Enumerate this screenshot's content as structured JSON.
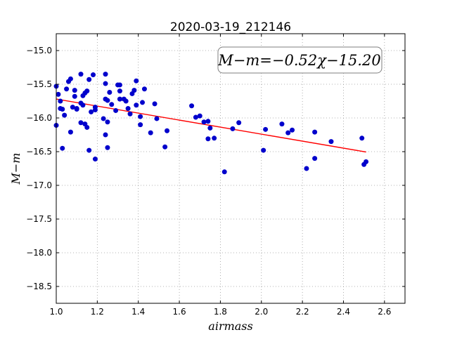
{
  "chart_data": {
    "type": "scatter",
    "title": "2020-03-19_212146",
    "xlabel": "airmass",
    "ylabel": "M−m",
    "xlim": [
      1.0,
      2.7
    ],
    "ylim": [
      -18.75,
      -14.75
    ],
    "y_inverted": true,
    "x_ticks": [
      1.0,
      1.2,
      1.4,
      1.6,
      1.8,
      2.0,
      2.2,
      2.4,
      2.6
    ],
    "x_tick_labels": [
      "1.0",
      "1.2",
      "1.4",
      "1.6",
      "1.8",
      "2.0",
      "2.2",
      "2.4",
      "2.6"
    ],
    "y_ticks": [
      -15.0,
      -15.5,
      -16.0,
      -16.5,
      -17.0,
      -17.5,
      -18.0,
      -18.5
    ],
    "y_tick_labels": [
      "−15.0",
      "−15.5",
      "−16.0",
      "−16.5",
      "−17.0",
      "−17.5",
      "−18.0",
      "−18.5"
    ],
    "grid": true,
    "annotation": "M−m=−0.52χ−15.20",
    "point_color": "#0000cc",
    "fit_color": "#ff0000",
    "points": [
      [
        1.0,
        -15.53
      ],
      [
        1.0,
        -16.11
      ],
      [
        1.01,
        -15.65
      ],
      [
        1.02,
        -15.86
      ],
      [
        1.02,
        -15.75
      ],
      [
        1.03,
        -15.87
      ],
      [
        1.03,
        -16.45
      ],
      [
        1.04,
        -15.96
      ],
      [
        1.05,
        -15.57
      ],
      [
        1.06,
        -15.46
      ],
      [
        1.07,
        -15.42
      ],
      [
        1.07,
        -16.21
      ],
      [
        1.08,
        -15.84
      ],
      [
        1.09,
        -15.59
      ],
      [
        1.09,
        -15.68
      ],
      [
        1.1,
        -15.86
      ],
      [
        1.1,
        -15.87
      ],
      [
        1.12,
        -15.35
      ],
      [
        1.12,
        -15.78
      ],
      [
        1.12,
        -16.07
      ],
      [
        1.13,
        -15.67
      ],
      [
        1.13,
        -15.81
      ],
      [
        1.14,
        -15.63
      ],
      [
        1.14,
        -16.09
      ],
      [
        1.15,
        -15.6
      ],
      [
        1.15,
        -16.14
      ],
      [
        1.16,
        -15.43
      ],
      [
        1.16,
        -16.48
      ],
      [
        1.17,
        -15.91
      ],
      [
        1.18,
        -15.36
      ],
      [
        1.19,
        -15.84
      ],
      [
        1.19,
        -15.88
      ],
      [
        1.19,
        -16.61
      ],
      [
        1.23,
        -16.01
      ],
      [
        1.24,
        -15.72
      ],
      [
        1.24,
        -16.25
      ],
      [
        1.24,
        -15.49
      ],
      [
        1.24,
        -15.35
      ],
      [
        1.25,
        -15.74
      ],
      [
        1.25,
        -16.06
      ],
      [
        1.25,
        -16.44
      ],
      [
        1.26,
        -15.62
      ],
      [
        1.27,
        -15.8
      ],
      [
        1.29,
        -15.89
      ],
      [
        1.3,
        -15.51
      ],
      [
        1.31,
        -15.6
      ],
      [
        1.31,
        -15.51
      ],
      [
        1.31,
        -15.72
      ],
      [
        1.33,
        -15.72
      ],
      [
        1.34,
        -15.75
      ],
      [
        1.35,
        -15.86
      ],
      [
        1.36,
        -15.94
      ],
      [
        1.37,
        -15.64
      ],
      [
        1.38,
        -15.59
      ],
      [
        1.39,
        -15.45
      ],
      [
        1.39,
        -15.81
      ],
      [
        1.41,
        -15.98
      ],
      [
        1.41,
        -16.1
      ],
      [
        1.42,
        -15.77
      ],
      [
        1.43,
        -15.57
      ],
      [
        1.46,
        -16.22
      ],
      [
        1.48,
        -15.79
      ],
      [
        1.49,
        -16.01
      ],
      [
        1.53,
        -16.43
      ],
      [
        1.54,
        -16.19
      ],
      [
        1.66,
        -15.82
      ],
      [
        1.68,
        -15.99
      ],
      [
        1.7,
        -15.97
      ],
      [
        1.72,
        -16.06
      ],
      [
        1.74,
        -16.05
      ],
      [
        1.74,
        -16.31
      ],
      [
        1.75,
        -16.15
      ],
      [
        1.77,
        -16.3
      ],
      [
        1.82,
        -16.8
      ],
      [
        1.86,
        -16.16
      ],
      [
        1.89,
        -16.07
      ],
      [
        2.01,
        -16.48
      ],
      [
        2.02,
        -16.17
      ],
      [
        2.1,
        -16.09
      ],
      [
        2.13,
        -16.22
      ],
      [
        2.15,
        -16.18
      ],
      [
        2.22,
        -16.75
      ],
      [
        2.26,
        -16.21
      ],
      [
        2.26,
        -16.6
      ],
      [
        2.34,
        -16.35
      ],
      [
        2.49,
        -16.3
      ],
      [
        2.5,
        -16.69
      ],
      [
        2.51,
        -16.65
      ]
    ],
    "fit": {
      "slope": -0.52,
      "intercept": -15.2,
      "x_range": [
        1.0,
        2.51
      ]
    }
  }
}
